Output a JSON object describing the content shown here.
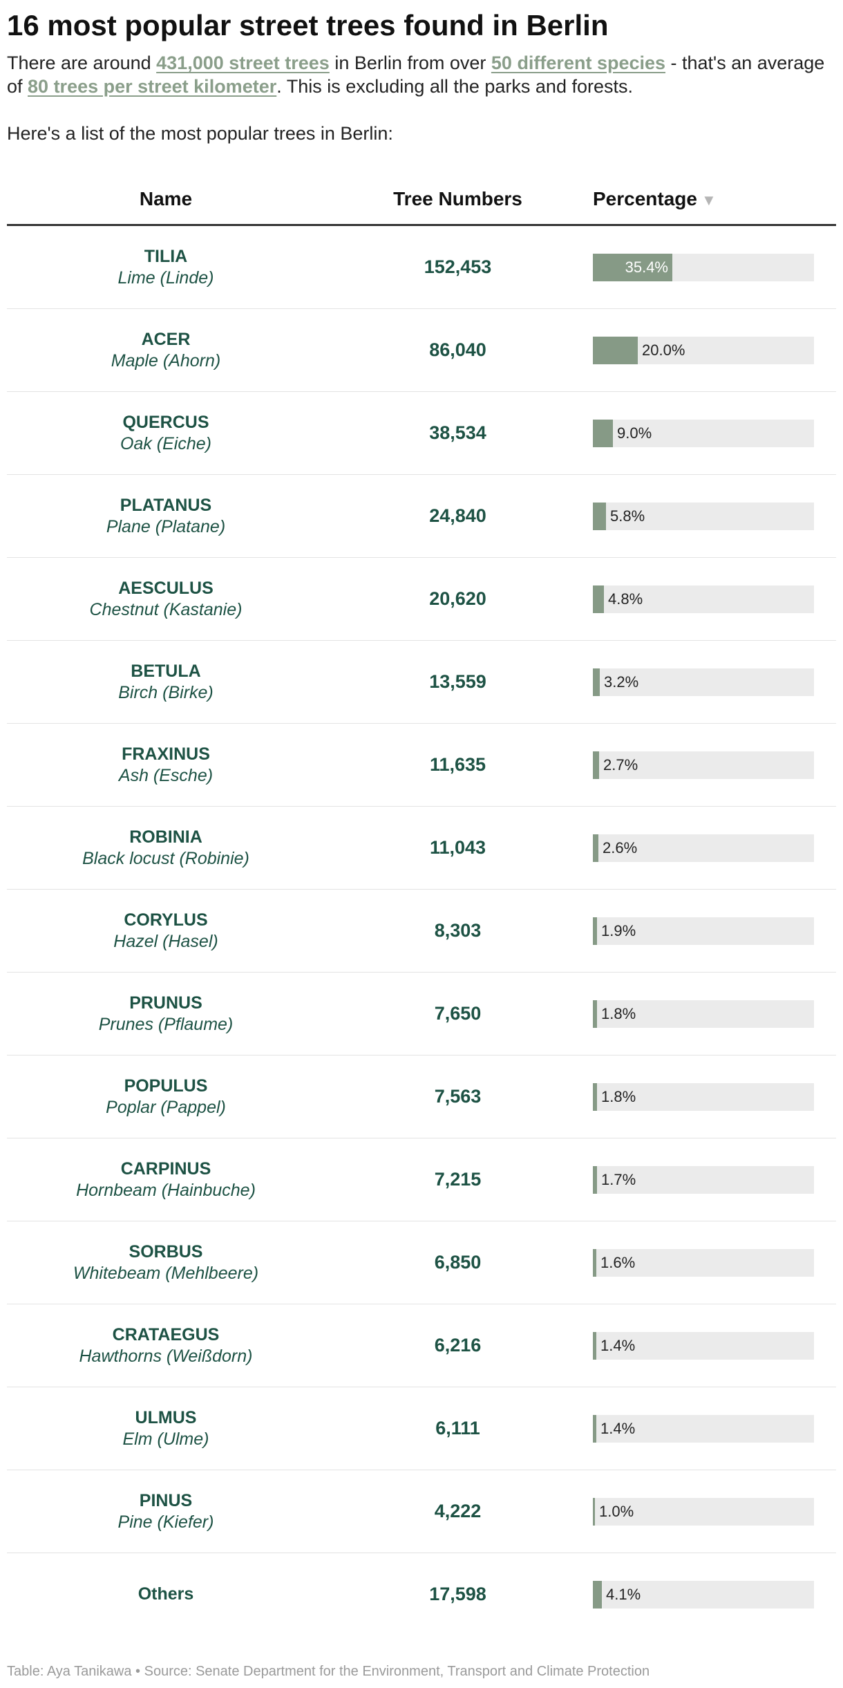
{
  "title": "16 most popular street trees found in Berlin",
  "intro": {
    "part1": "There are around ",
    "link1": "431,000 street trees",
    "part2": " in Berlin from over ",
    "link2": "50 different species",
    "part3": " - that's an average of ",
    "link3": "80 trees per street kilometer",
    "part4": ". This is excluding all the parks and forests."
  },
  "lead": "Here's a list of the most popular trees in Berlin:",
  "columns": {
    "name": "Name",
    "numbers": "Tree Numbers",
    "percentage": "Percentage",
    "sort_indicator": "▼"
  },
  "colors": {
    "bar_fill": "#869a86",
    "bar_track": "#ebebeb",
    "text_dark_green": "#1d5244",
    "link": "#8a9e8a"
  },
  "chart_data": {
    "type": "table",
    "title": "16 most popular street trees found in Berlin",
    "columns": [
      "Name",
      "Tree Numbers",
      "Percentage"
    ],
    "sorted_by": "Percentage",
    "sort_direction": "descending",
    "percentage_scale_max": 100,
    "rows": [
      {
        "genus": "TILIA",
        "common": "Lime (Linde)",
        "count": "152,453",
        "percent": 35.4,
        "percent_label": "35.4%"
      },
      {
        "genus": "ACER",
        "common": "Maple (Ahorn)",
        "count": "86,040",
        "percent": 20.0,
        "percent_label": "20.0%"
      },
      {
        "genus": "QUERCUS",
        "common": "Oak (Eiche)",
        "count": "38,534",
        "percent": 9.0,
        "percent_label": "9.0%"
      },
      {
        "genus": "PLATANUS",
        "common": "Plane (Platane)",
        "count": "24,840",
        "percent": 5.8,
        "percent_label": "5.8%"
      },
      {
        "genus": "AESCULUS",
        "common": "Chestnut (Kastanie)",
        "count": "20,620",
        "percent": 4.8,
        "percent_label": "4.8%"
      },
      {
        "genus": "BETULA",
        "common": "Birch (Birke)",
        "count": "13,559",
        "percent": 3.2,
        "percent_label": "3.2%"
      },
      {
        "genus": "FRAXINUS",
        "common": "Ash (Esche)",
        "count": "11,635",
        "percent": 2.7,
        "percent_label": "2.7%"
      },
      {
        "genus": "ROBINIA",
        "common": "Black locust (Robinie)",
        "count": "11,043",
        "percent": 2.6,
        "percent_label": "2.6%"
      },
      {
        "genus": "CORYLUS",
        "common": "Hazel (Hasel)",
        "count": "8,303",
        "percent": 1.9,
        "percent_label": "1.9%"
      },
      {
        "genus": "PRUNUS",
        "common": "Prunes (Pflaume)",
        "count": "7,650",
        "percent": 1.8,
        "percent_label": "1.8%"
      },
      {
        "genus": "POPULUS",
        "common": "Poplar (Pappel)",
        "count": "7,563",
        "percent": 1.8,
        "percent_label": "1.8%"
      },
      {
        "genus": "CARPINUS",
        "common": "Hornbeam (Hainbuche)",
        "count": "7,215",
        "percent": 1.7,
        "percent_label": "1.7%"
      },
      {
        "genus": "SORBUS",
        "common": "Whitebeam (Mehlbeere)",
        "count": "6,850",
        "percent": 1.6,
        "percent_label": "1.6%"
      },
      {
        "genus": "CRATAEGUS",
        "common": "Hawthorns (Weißdorn)",
        "count": "6,216",
        "percent": 1.4,
        "percent_label": "1.4%"
      },
      {
        "genus": "ULMUS",
        "common": "Elm (Ulme)",
        "count": "6,111",
        "percent": 1.4,
        "percent_label": "1.4%"
      },
      {
        "genus": "PINUS",
        "common": "Pine (Kiefer)",
        "count": "4,222",
        "percent": 1.0,
        "percent_label": "1.0%"
      },
      {
        "genus": "Others",
        "common": "",
        "count": "17,598",
        "percent": 4.1,
        "percent_label": "4.1%"
      }
    ]
  },
  "footer": "Table: Aya Tanikawa • Source: Senate Department for the Environment, Transport and Climate Protection"
}
